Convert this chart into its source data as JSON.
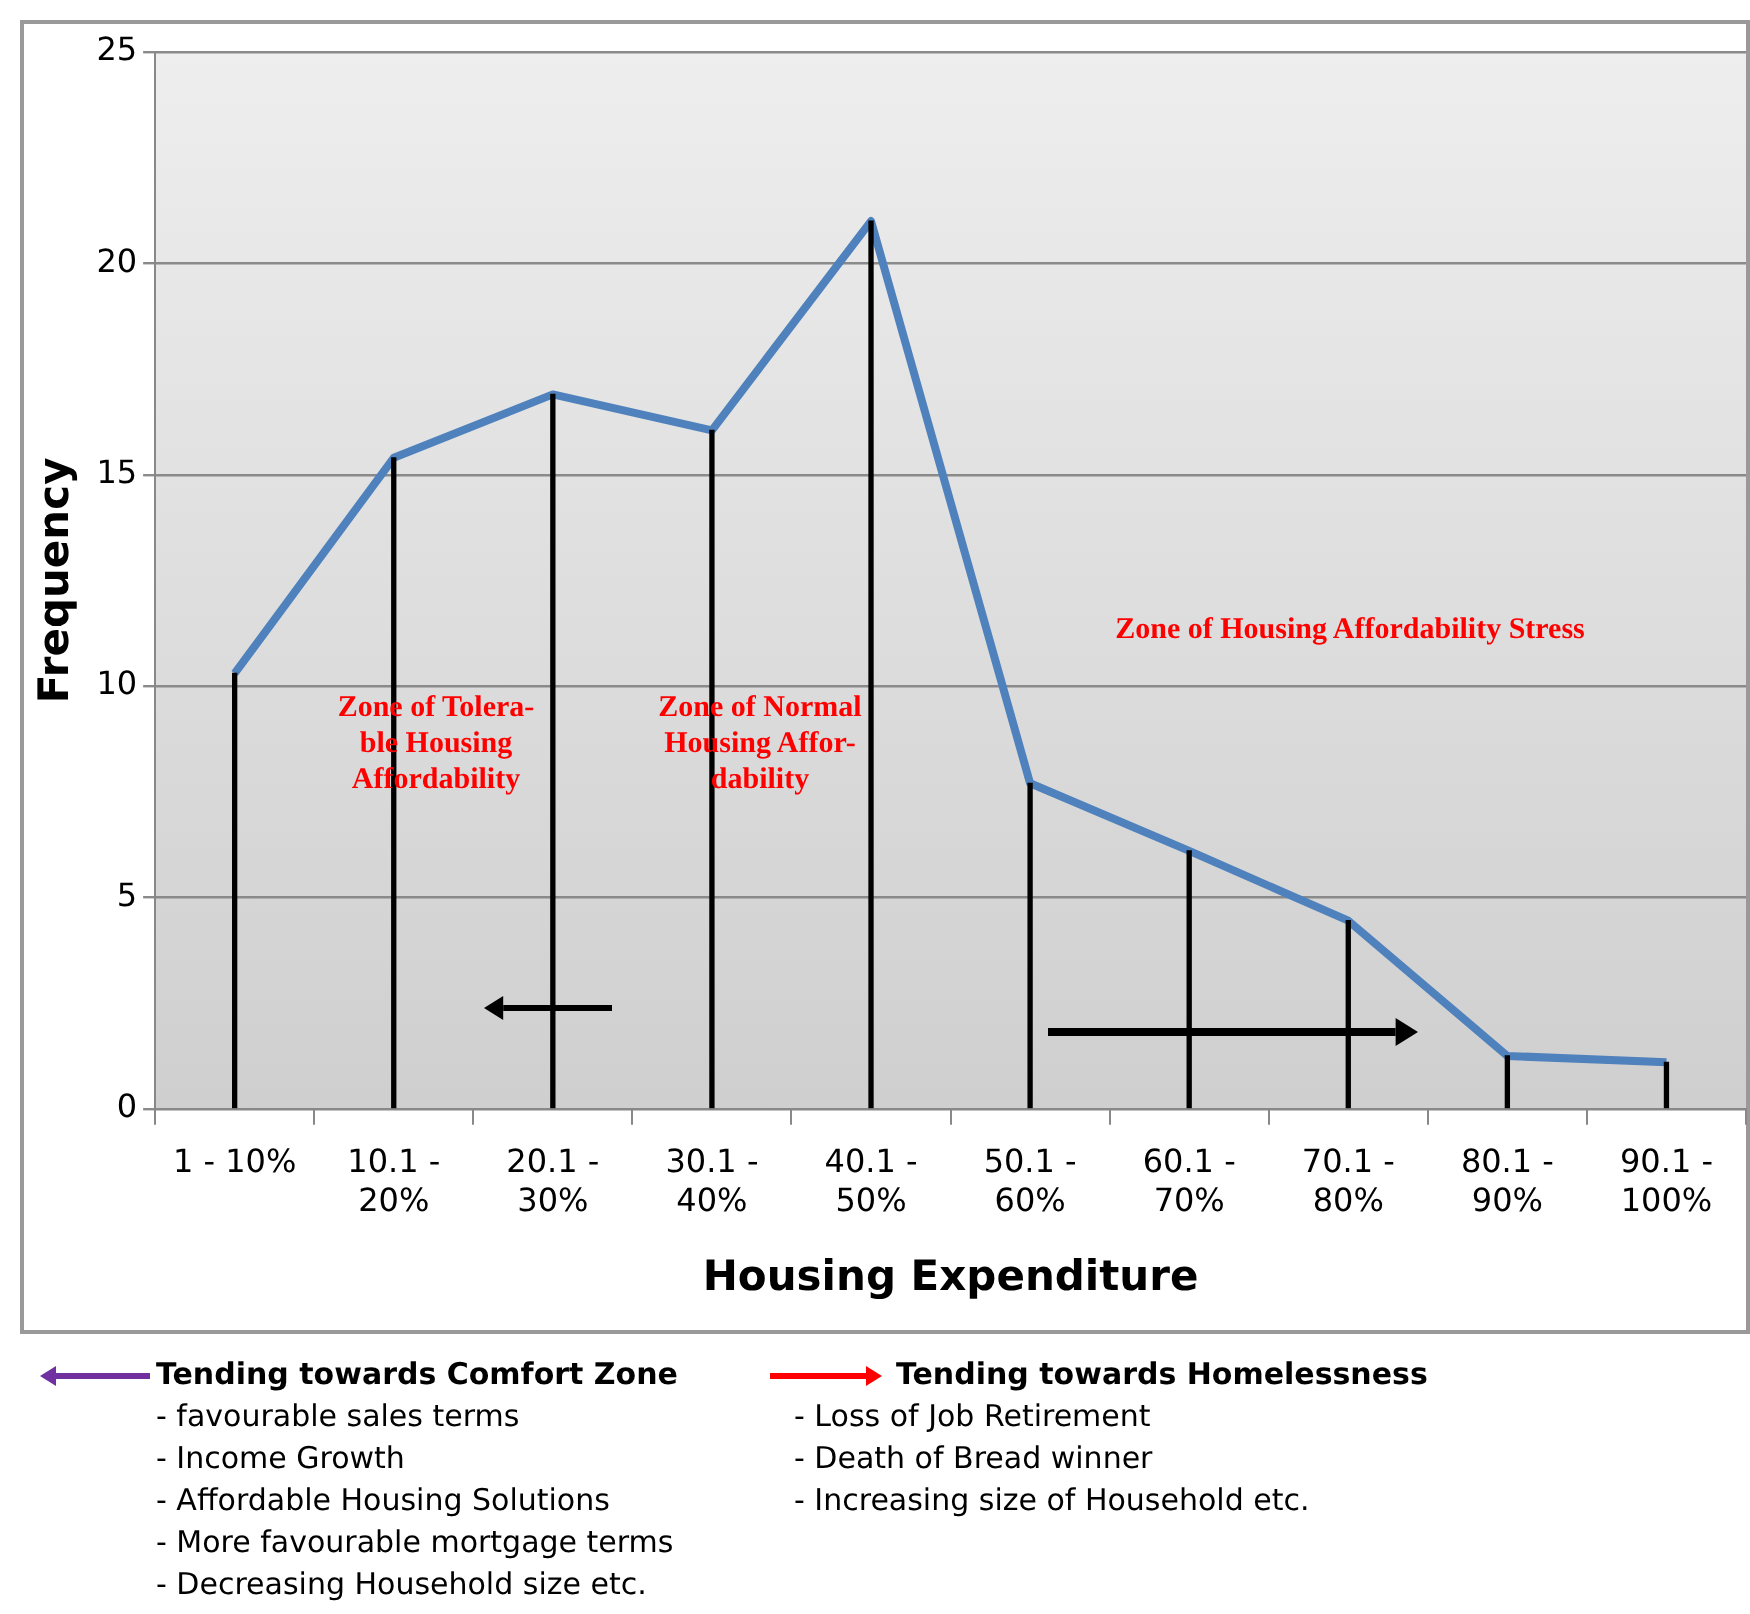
{
  "chart_data": {
    "type": "line",
    "xlabel": "Housing Expenditure",
    "ylabel": "Frequency",
    "categories": [
      "1 - 10%",
      "10.1 - 20%",
      "20.1 - 30%",
      "30.1 - 40%",
      "40.1 - 50%",
      "50.1 - 60%",
      "60.1 - 70%",
      "70.1 - 80%",
      "80.1 - 90%",
      "90.1 - 100%"
    ],
    "series": [
      {
        "type": "bar",
        "color": "#000000",
        "values": [
          10.3,
          15.4,
          16.9,
          16.05,
          21.0,
          7.7,
          6.1,
          4.45,
          1.25,
          1.1
        ]
      },
      {
        "color": "#4f81bd",
        "values": [
          10.3,
          15.4,
          16.9,
          16.05,
          21.0,
          7.7,
          6.1,
          4.45,
          1.25,
          1.1
        ]
      }
    ],
    "ylim": [
      0,
      25
    ],
    "yticks": [
      0,
      5,
      10,
      15,
      20,
      25
    ],
    "grid": "y",
    "marker": "none",
    "legend": false,
    "annotations": [
      "Zone of Tolera-ble Housing Affordability",
      "Zone of Normal Housing Affor-dability",
      "Zone of Housing Affordability Stress",
      "Tending towards Comfort Zone",
      "- favourable sales terms",
      "- Income Growth",
      "- Affordable Housing Solutions",
      "- More favourable mortgage terms",
      "- Decreasing Household size etc.",
      "Tending towards Homelessness",
      "- Loss of Job Retirement",
      "- Death of Bread winner",
      "- Increasing size of Household etc."
    ]
  }
}
